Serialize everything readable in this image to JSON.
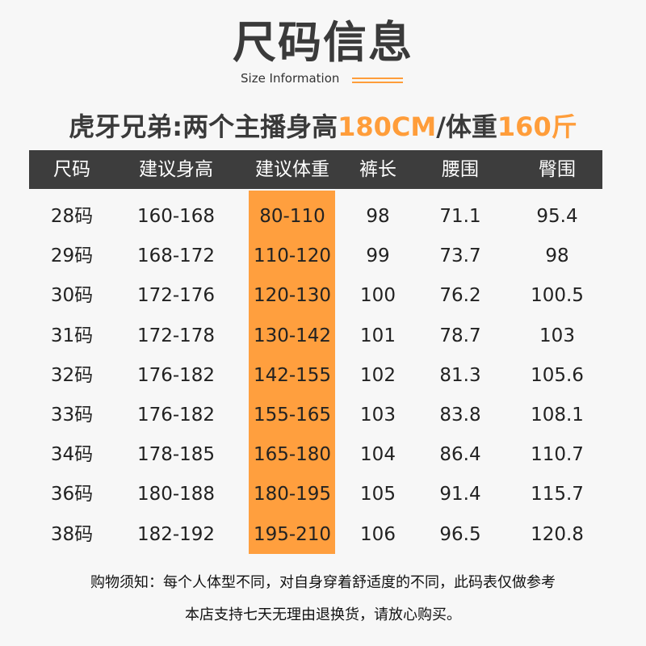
{
  "title": "尺码信息",
  "subtitle": "Size Information",
  "headline": {
    "prefix": "虎牙兄弟:两个主播身高",
    "height": "180CM",
    "mid": "/体重",
    "weight": "160斤"
  },
  "accent_color": "#ff9d3a",
  "header_color": "#3d3d3d",
  "columns": [
    "尺码",
    "建议身高",
    "建议体重",
    "裤长",
    "腰围",
    "臀围"
  ],
  "rows": [
    [
      "28码",
      "160-168",
      "80-110",
      "98",
      "71.1",
      "95.4"
    ],
    [
      "29码",
      "168-172",
      "110-120",
      "99",
      "73.7",
      "98"
    ],
    [
      "30码",
      "172-176",
      "120-130",
      "100",
      "76.2",
      "100.5"
    ],
    [
      "31码",
      "172-178",
      "130-142",
      "101",
      "78.7",
      "103"
    ],
    [
      "32码",
      "176-182",
      "142-155",
      "102",
      "81.3",
      "105.6"
    ],
    [
      "33码",
      "176-182",
      "155-165",
      "103",
      "83.8",
      "108.1"
    ],
    [
      "34码",
      "178-185",
      "165-180",
      "104",
      "86.4",
      "110.7"
    ],
    [
      "36码",
      "180-188",
      "180-195",
      "105",
      "91.4",
      "115.7"
    ],
    [
      "38码",
      "182-192",
      "195-210",
      "106",
      "96.5",
      "120.8"
    ]
  ],
  "notes": [
    "购物须知：每个人体型不同，对自身穿着舒适度的不同，此码表仅做参考",
    "本店支持七天无理由退换货，请放心购买。"
  ]
}
